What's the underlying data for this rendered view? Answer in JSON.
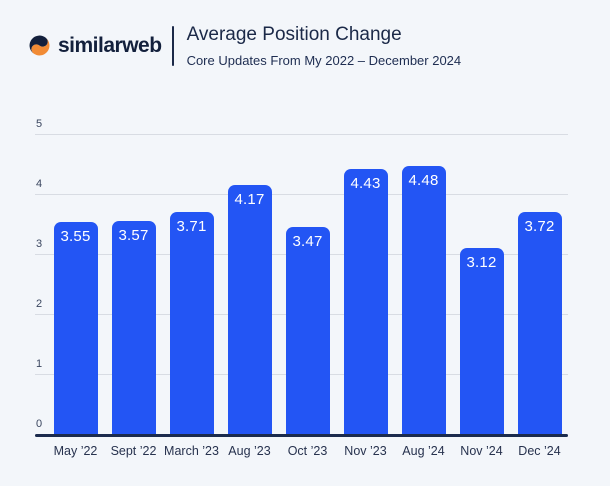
{
  "header": {
    "logo_text": "similarweb",
    "title": "Average Position Change",
    "subtitle": "Core Updates From My 2022 – December 2024"
  },
  "colors": {
    "background": "#f3f6fa",
    "bar": "#2355f4",
    "bar_label": "#ffffff",
    "gridline": "#d8dce3",
    "axis_line": "#1b2b4d",
    "header_text": "#1b2948",
    "logo_navy": "#13203c",
    "logo_orange": "#f18b35",
    "tick_text": "#3a465f"
  },
  "chart_data": {
    "type": "bar",
    "title": "Average Position Change",
    "subtitle": "Core Updates From My 2022 – December 2024",
    "categories": [
      "May ’22",
      "Sept ’22",
      "March ’23",
      "Aug ’23",
      "Oct ’23",
      "Nov ’23",
      "Aug ’24",
      "Nov ’24",
      "Dec ’24"
    ],
    "values": [
      3.55,
      3.57,
      3.71,
      4.17,
      3.47,
      4.43,
      4.48,
      3.12,
      3.72
    ],
    "xlabel": "",
    "ylabel": "",
    "ylim": [
      0,
      5
    ],
    "yticks": [
      0,
      1,
      2,
      3,
      4,
      5
    ],
    "grid": true,
    "legend": false,
    "value_label_position": "inside-top"
  }
}
